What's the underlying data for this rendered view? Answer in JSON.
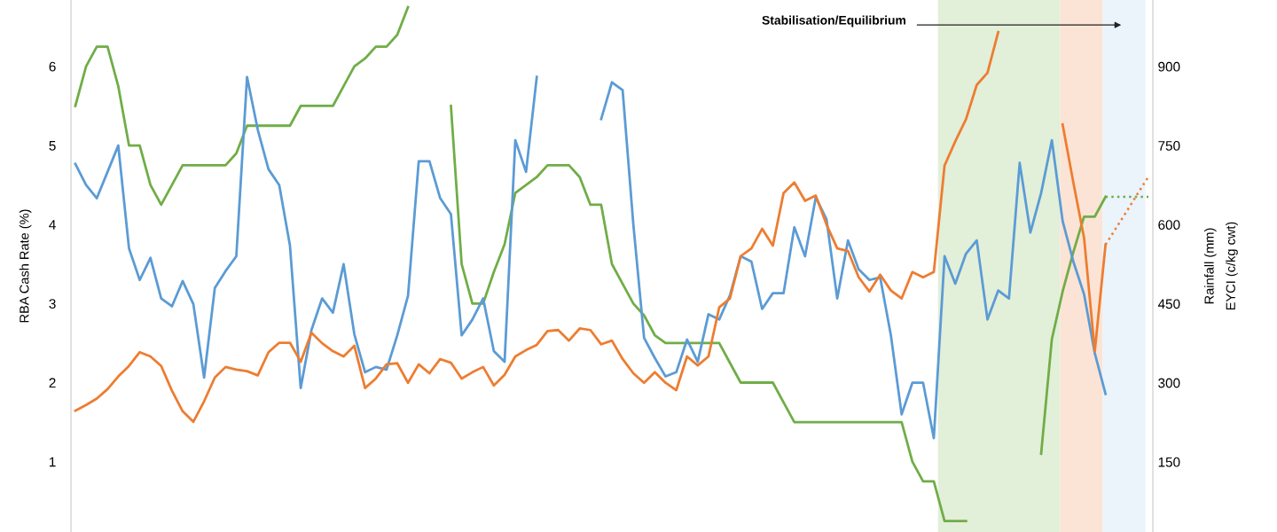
{
  "chart_data": {
    "type": "line",
    "ylabel": "RBA Cash Rate (%)",
    "y2label": "Rainfall (mm)",
    "annotations": [
      "Stabilisation/Equilibrium",
      "EYCI (c/kg cwt)"
    ],
    "categories": [
      null,
      null,
      null,
      null,
      null,
      null,
      null,
      null,
      null,
      null,
      null,
      null,
      null,
      null,
      null,
      null,
      null,
      null,
      null,
      null,
      null,
      null,
      null,
      null,
      null,
      null,
      null,
      null,
      null,
      null,
      null,
      null,
      null,
      null,
      null,
      null,
      null,
      null,
      null,
      null,
      null,
      null,
      null,
      null,
      null,
      null,
      null,
      null,
      null,
      null,
      null,
      null,
      null,
      null,
      null,
      null,
      null,
      null,
      null,
      null,
      null,
      null,
      null,
      null,
      null,
      null,
      null,
      null,
      null,
      null,
      null,
      null,
      null,
      null,
      null,
      null,
      null,
      null,
      null,
      null,
      null,
      null,
      null,
      null,
      null,
      null,
      null,
      null,
      null,
      null,
      null,
      null,
      null,
      null,
      null,
      null,
      null,
      null,
      null,
      null,
      null
    ],
    "series": [
      {
        "color": "#70ad47",
        "axis": "y",
        "line_style": "solid",
        "values": [
          5.5,
          6.0,
          6.25,
          6.25,
          5.75,
          5.0,
          5.0,
          4.5,
          4.25,
          4.5,
          4.75,
          4.75,
          4.75,
          4.75,
          4.75,
          4.9,
          5.25,
          5.25,
          5.25,
          5.25,
          5.25,
          5.5,
          5.5,
          5.5,
          5.5,
          5.75,
          6.0,
          6.1,
          6.25,
          6.25,
          6.4,
          6.75,
          null,
          null,
          null,
          null,
          null,
          null,
          null,
          null,
          null,
          null,
          null,
          null,
          null,
          null,
          null,
          null,
          null,
          null,
          null,
          null,
          null,
          null,
          null,
          null,
          null,
          null,
          null,
          null,
          null,
          null,
          null,
          null,
          null,
          null,
          null,
          null,
          null,
          null,
          null,
          null,
          null,
          null,
          null,
          null,
          null,
          null,
          null,
          null,
          null,
          null,
          null,
          null,
          null,
          null,
          null,
          null,
          null,
          null,
          null,
          null,
          null,
          null,
          null,
          null,
          null,
          null,
          null,
          null,
          null
        ]
      },
      {
        "color": "#70ad47",
        "axis": "y",
        "line_style": "solid",
        "values": [
          null,
          null,
          null,
          null,
          null,
          null,
          null,
          null,
          null,
          null,
          null,
          null,
          null,
          null,
          null,
          null,
          null,
          null,
          null,
          null,
          null,
          null,
          null,
          null,
          null,
          null,
          null,
          null,
          null,
          null,
          null,
          null,
          null,
          null,
          null,
          5.5,
          3.5,
          3.0,
          3.0,
          3.4,
          3.75,
          4.4,
          4.5,
          4.6,
          4.75,
          4.75,
          4.75,
          4.6,
          4.25,
          4.25,
          3.5,
          3.25,
          3.0,
          2.85,
          2.6,
          2.5,
          2.5,
          2.5,
          2.5,
          2.5,
          2.5,
          2.25,
          2.0,
          2.0,
          2.0,
          2.0,
          1.75,
          1.5,
          1.5,
          1.5,
          1.5,
          1.5,
          1.5,
          1.5,
          1.5,
          1.5,
          1.5,
          1.5,
          1.0,
          0.75,
          0.75,
          0.25,
          0.25,
          0.25,
          null,
          null,
          null,
          null,
          null,
          null,
          null,
          null,
          null,
          null,
          null,
          null,
          null,
          null,
          null,
          null,
          null
        ]
      },
      {
        "color": "#70ad47",
        "axis": "y",
        "line_style": "solid",
        "values": [
          null,
          null,
          null,
          null,
          null,
          null,
          null,
          null,
          null,
          null,
          null,
          null,
          null,
          null,
          null,
          null,
          null,
          null,
          null,
          null,
          null,
          null,
          null,
          null,
          null,
          null,
          null,
          null,
          null,
          null,
          null,
          null,
          null,
          null,
          null,
          null,
          null,
          null,
          null,
          null,
          null,
          null,
          null,
          null,
          null,
          null,
          null,
          null,
          null,
          null,
          null,
          null,
          null,
          null,
          null,
          null,
          null,
          null,
          null,
          null,
          null,
          null,
          null,
          null,
          null,
          null,
          null,
          null,
          null,
          null,
          null,
          null,
          null,
          null,
          null,
          null,
          null,
          null,
          null,
          null,
          null,
          null,
          null,
          null,
          null,
          null,
          null,
          null,
          null,
          null,
          1.1,
          2.55,
          3.15,
          3.65,
          4.1,
          4.1,
          4.35,
          null,
          null,
          null,
          null
        ]
      },
      {
        "color": "#70ad47",
        "axis": "y",
        "line_style": "dotted",
        "values": [
          null,
          null,
          null,
          null,
          null,
          null,
          null,
          null,
          null,
          null,
          null,
          null,
          null,
          null,
          null,
          null,
          null,
          null,
          null,
          null,
          null,
          null,
          null,
          null,
          null,
          null,
          null,
          null,
          null,
          null,
          null,
          null,
          null,
          null,
          null,
          null,
          null,
          null,
          null,
          null,
          null,
          null,
          null,
          null,
          null,
          null,
          null,
          null,
          null,
          null,
          null,
          null,
          null,
          null,
          null,
          null,
          null,
          null,
          null,
          null,
          null,
          null,
          null,
          null,
          null,
          null,
          null,
          null,
          null,
          null,
          null,
          null,
          null,
          null,
          null,
          null,
          null,
          null,
          null,
          null,
          null,
          null,
          null,
          null,
          null,
          null,
          null,
          null,
          null,
          null,
          null,
          null,
          null,
          null,
          null,
          null,
          4.35,
          4.35,
          4.35,
          4.35,
          4.35
        ]
      },
      {
        "color": "#5b9bd5",
        "axis": "y2",
        "line_style": "solid",
        "values": [
          715,
          675,
          650,
          700,
          750,
          555,
          495,
          537,
          460,
          445,
          493,
          449,
          310,
          480,
          512,
          540,
          880,
          780,
          705,
          675,
          560,
          290,
          400,
          460,
          433,
          525,
          392,
          320,
          330,
          325,
          390,
          465,
          720,
          720,
          650,
          620,
          390,
          420,
          460,
          360,
          340,
          760,
          700,
          880,
          null,
          null,
          null,
          null,
          null,
          null,
          null,
          null,
          null,
          null,
          null,
          null,
          null,
          null,
          null,
          null,
          null,
          null,
          null,
          null,
          null,
          null,
          null,
          null,
          null,
          null,
          null,
          null,
          null,
          null,
          null,
          null,
          null,
          null,
          null,
          null,
          null,
          null,
          null,
          null,
          null,
          null,
          null,
          null,
          null,
          null,
          null,
          null,
          null,
          null,
          null,
          null,
          null,
          null,
          null,
          null,
          null
        ]
      },
      {
        "color": "#5b9bd5",
        "axis": "y2",
        "line_style": "solid",
        "values": [
          null,
          null,
          null,
          null,
          null,
          null,
          null,
          null,
          null,
          null,
          null,
          null,
          null,
          null,
          null,
          null,
          null,
          null,
          null,
          null,
          null,
          null,
          null,
          null,
          null,
          null,
          null,
          null,
          null,
          null,
          null,
          null,
          null,
          null,
          null,
          null,
          null,
          null,
          null,
          null,
          null,
          null,
          null,
          null,
          null,
          null,
          null,
          null,
          null,
          800,
          870,
          855,
          600,
          385,
          347,
          312,
          320,
          382,
          340,
          430,
          420,
          466,
          540,
          530,
          440,
          470,
          470,
          595,
          540,
          652,
          610,
          460,
          570,
          515,
          495,
          500,
          390,
          240,
          300,
          300,
          195,
          540,
          488,
          545,
          570,
          420,
          475,
          460,
          717,
          585,
          660,
          760,
          607,
          530,
          468,
          356,
          279,
          null,
          null,
          null,
          null
        ]
      },
      {
        "color": "#ed7d31",
        "axis": "y2",
        "line_style": "solid",
        "values": [
          247,
          258,
          270,
          288,
          312,
          332,
          358,
          350,
          332,
          285,
          246,
          226,
          265,
          310,
          330,
          325,
          322,
          314,
          358,
          376,
          376,
          340,
          395,
          375,
          360,
          350,
          370,
          290,
          308,
          335,
          337,
          300,
          335,
          318,
          345,
          338,
          308,
          320,
          330,
          295,
          315,
          350,
          362,
          372,
          398,
          400,
          380,
          403,
          400,
          373,
          380,
          345,
          318,
          300,
          320,
          300,
          286,
          350,
          333,
          350,
          443,
          460,
          540,
          555,
          592,
          560,
          660,
          680,
          645,
          655,
          600,
          555,
          550,
          500,
          473,
          505,
          475,
          460,
          510,
          500,
          510,
          712,
          758,
          800,
          865,
          888,
          965,
          null,
          null,
          null,
          null,
          null,
          null,
          null,
          null,
          null,
          null,
          null,
          null,
          null,
          null
        ]
      },
      {
        "color": "#ed7d31",
        "axis": "y2",
        "line_style": "solid",
        "values": [
          null,
          null,
          null,
          null,
          null,
          null,
          null,
          null,
          null,
          null,
          null,
          null,
          null,
          null,
          null,
          null,
          null,
          null,
          null,
          null,
          null,
          null,
          null,
          null,
          null,
          null,
          null,
          null,
          null,
          null,
          null,
          null,
          null,
          null,
          null,
          null,
          null,
          null,
          null,
          null,
          null,
          null,
          null,
          null,
          null,
          null,
          null,
          null,
          null,
          null,
          null,
          null,
          null,
          null,
          null,
          null,
          null,
          null,
          null,
          null,
          null,
          null,
          null,
          null,
          null,
          null,
          null,
          null,
          null,
          null,
          null,
          null,
          null,
          null,
          null,
          null,
          null,
          null,
          null,
          null,
          null,
          null,
          null,
          null,
          null,
          null,
          null,
          null,
          null,
          null,
          null,
          null,
          790,
          680,
          575,
          360,
          562,
          null,
          null,
          null,
          null
        ]
      },
      {
        "color": "#ed7d31",
        "axis": "y2",
        "line_style": "dotted",
        "values": [
          null,
          null,
          null,
          null,
          null,
          null,
          null,
          null,
          null,
          null,
          null,
          null,
          null,
          null,
          null,
          null,
          null,
          null,
          null,
          null,
          null,
          null,
          null,
          null,
          null,
          null,
          null,
          null,
          null,
          null,
          null,
          null,
          null,
          null,
          null,
          null,
          null,
          null,
          null,
          null,
          null,
          null,
          null,
          null,
          null,
          null,
          null,
          null,
          null,
          null,
          null,
          null,
          null,
          null,
          null,
          null,
          null,
          null,
          null,
          null,
          null,
          null,
          null,
          null,
          null,
          null,
          null,
          null,
          null,
          null,
          null,
          null,
          null,
          null,
          null,
          null,
          null,
          null,
          null,
          null,
          null,
          null,
          null,
          null,
          null,
          null,
          null,
          null,
          null,
          null,
          null,
          null,
          null,
          null,
          null,
          null,
          562,
          594,
          626,
          659,
          691
        ]
      }
    ],
    "ylim": [
      0.11,
      6.84
    ],
    "yticks": [
      1,
      2,
      3,
      4,
      5,
      6
    ],
    "y2lim": [
      17,
      1026
    ],
    "y2ticks": [
      150,
      300,
      450,
      600,
      750,
      900
    ],
    "tick_labels": "y",
    "grid": false
  }
}
